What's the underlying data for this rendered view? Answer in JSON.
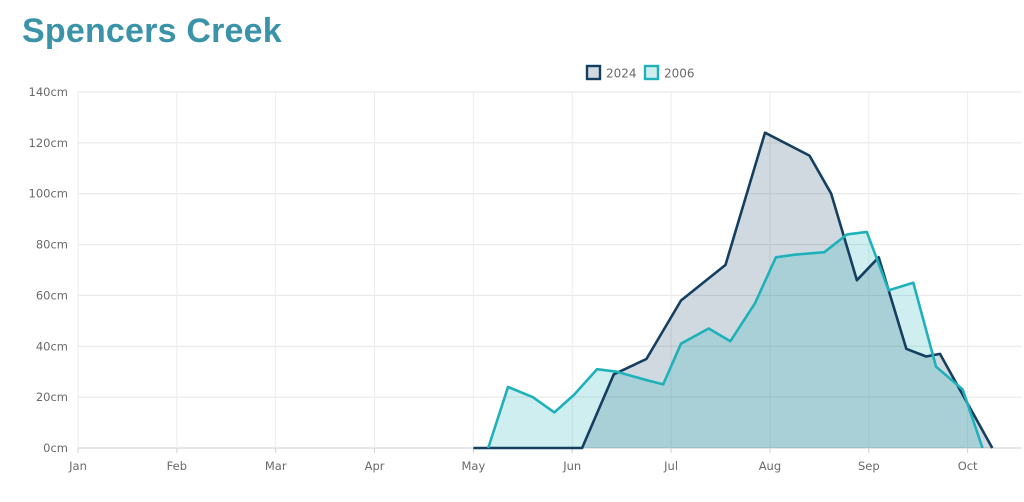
{
  "page": {
    "title": "Spencers Creek"
  },
  "chart_data": {
    "type": "area",
    "title": "Spencers Creek",
    "xlabel": "",
    "ylabel": "",
    "ylim": [
      0,
      140
    ],
    "yticks": [
      "0cm",
      "20cm",
      "40cm",
      "60cm",
      "80cm",
      "100cm",
      "120cm",
      "140cm"
    ],
    "ytick_values": [
      0,
      20,
      40,
      60,
      80,
      100,
      120,
      140
    ],
    "xticks": [
      "Jan",
      "Feb",
      "Mar",
      "Apr",
      "May",
      "Jun",
      "Jul",
      "Aug",
      "Sep",
      "Oct"
    ],
    "x_unit": "month (1 = Jan, fractional within month)",
    "xlim": [
      1,
      10.55
    ],
    "grid": true,
    "legend_position": "top-center",
    "series": [
      {
        "name": "2024",
        "stroke": "#143f60",
        "fill": "rgba(20,63,96,0.20)",
        "points": [
          [
            5.0,
            0
          ],
          [
            6.1,
            0
          ],
          [
            6.42,
            29
          ],
          [
            6.75,
            35
          ],
          [
            7.1,
            58
          ],
          [
            7.55,
            72
          ],
          [
            7.95,
            124
          ],
          [
            8.4,
            115
          ],
          [
            8.62,
            100
          ],
          [
            8.88,
            66
          ],
          [
            9.1,
            75
          ],
          [
            9.38,
            39
          ],
          [
            9.58,
            36
          ],
          [
            9.72,
            37
          ],
          [
            10.25,
            0
          ]
        ]
      },
      {
        "name": "2006",
        "stroke": "#1fb1ba",
        "fill": "rgba(31,177,186,0.22)",
        "points": [
          [
            5.15,
            0
          ],
          [
            5.35,
            24
          ],
          [
            5.6,
            20
          ],
          [
            5.82,
            14
          ],
          [
            6.02,
            21
          ],
          [
            6.25,
            31
          ],
          [
            6.45,
            30
          ],
          [
            6.72,
            27
          ],
          [
            6.92,
            25
          ],
          [
            7.1,
            41
          ],
          [
            7.38,
            47
          ],
          [
            7.6,
            42
          ],
          [
            7.85,
            57
          ],
          [
            8.06,
            75
          ],
          [
            8.25,
            76
          ],
          [
            8.55,
            77
          ],
          [
            8.78,
            84
          ],
          [
            8.98,
            85
          ],
          [
            9.2,
            62
          ],
          [
            9.45,
            65
          ],
          [
            9.68,
            32
          ],
          [
            9.95,
            23
          ],
          [
            10.15,
            0
          ]
        ]
      }
    ]
  }
}
